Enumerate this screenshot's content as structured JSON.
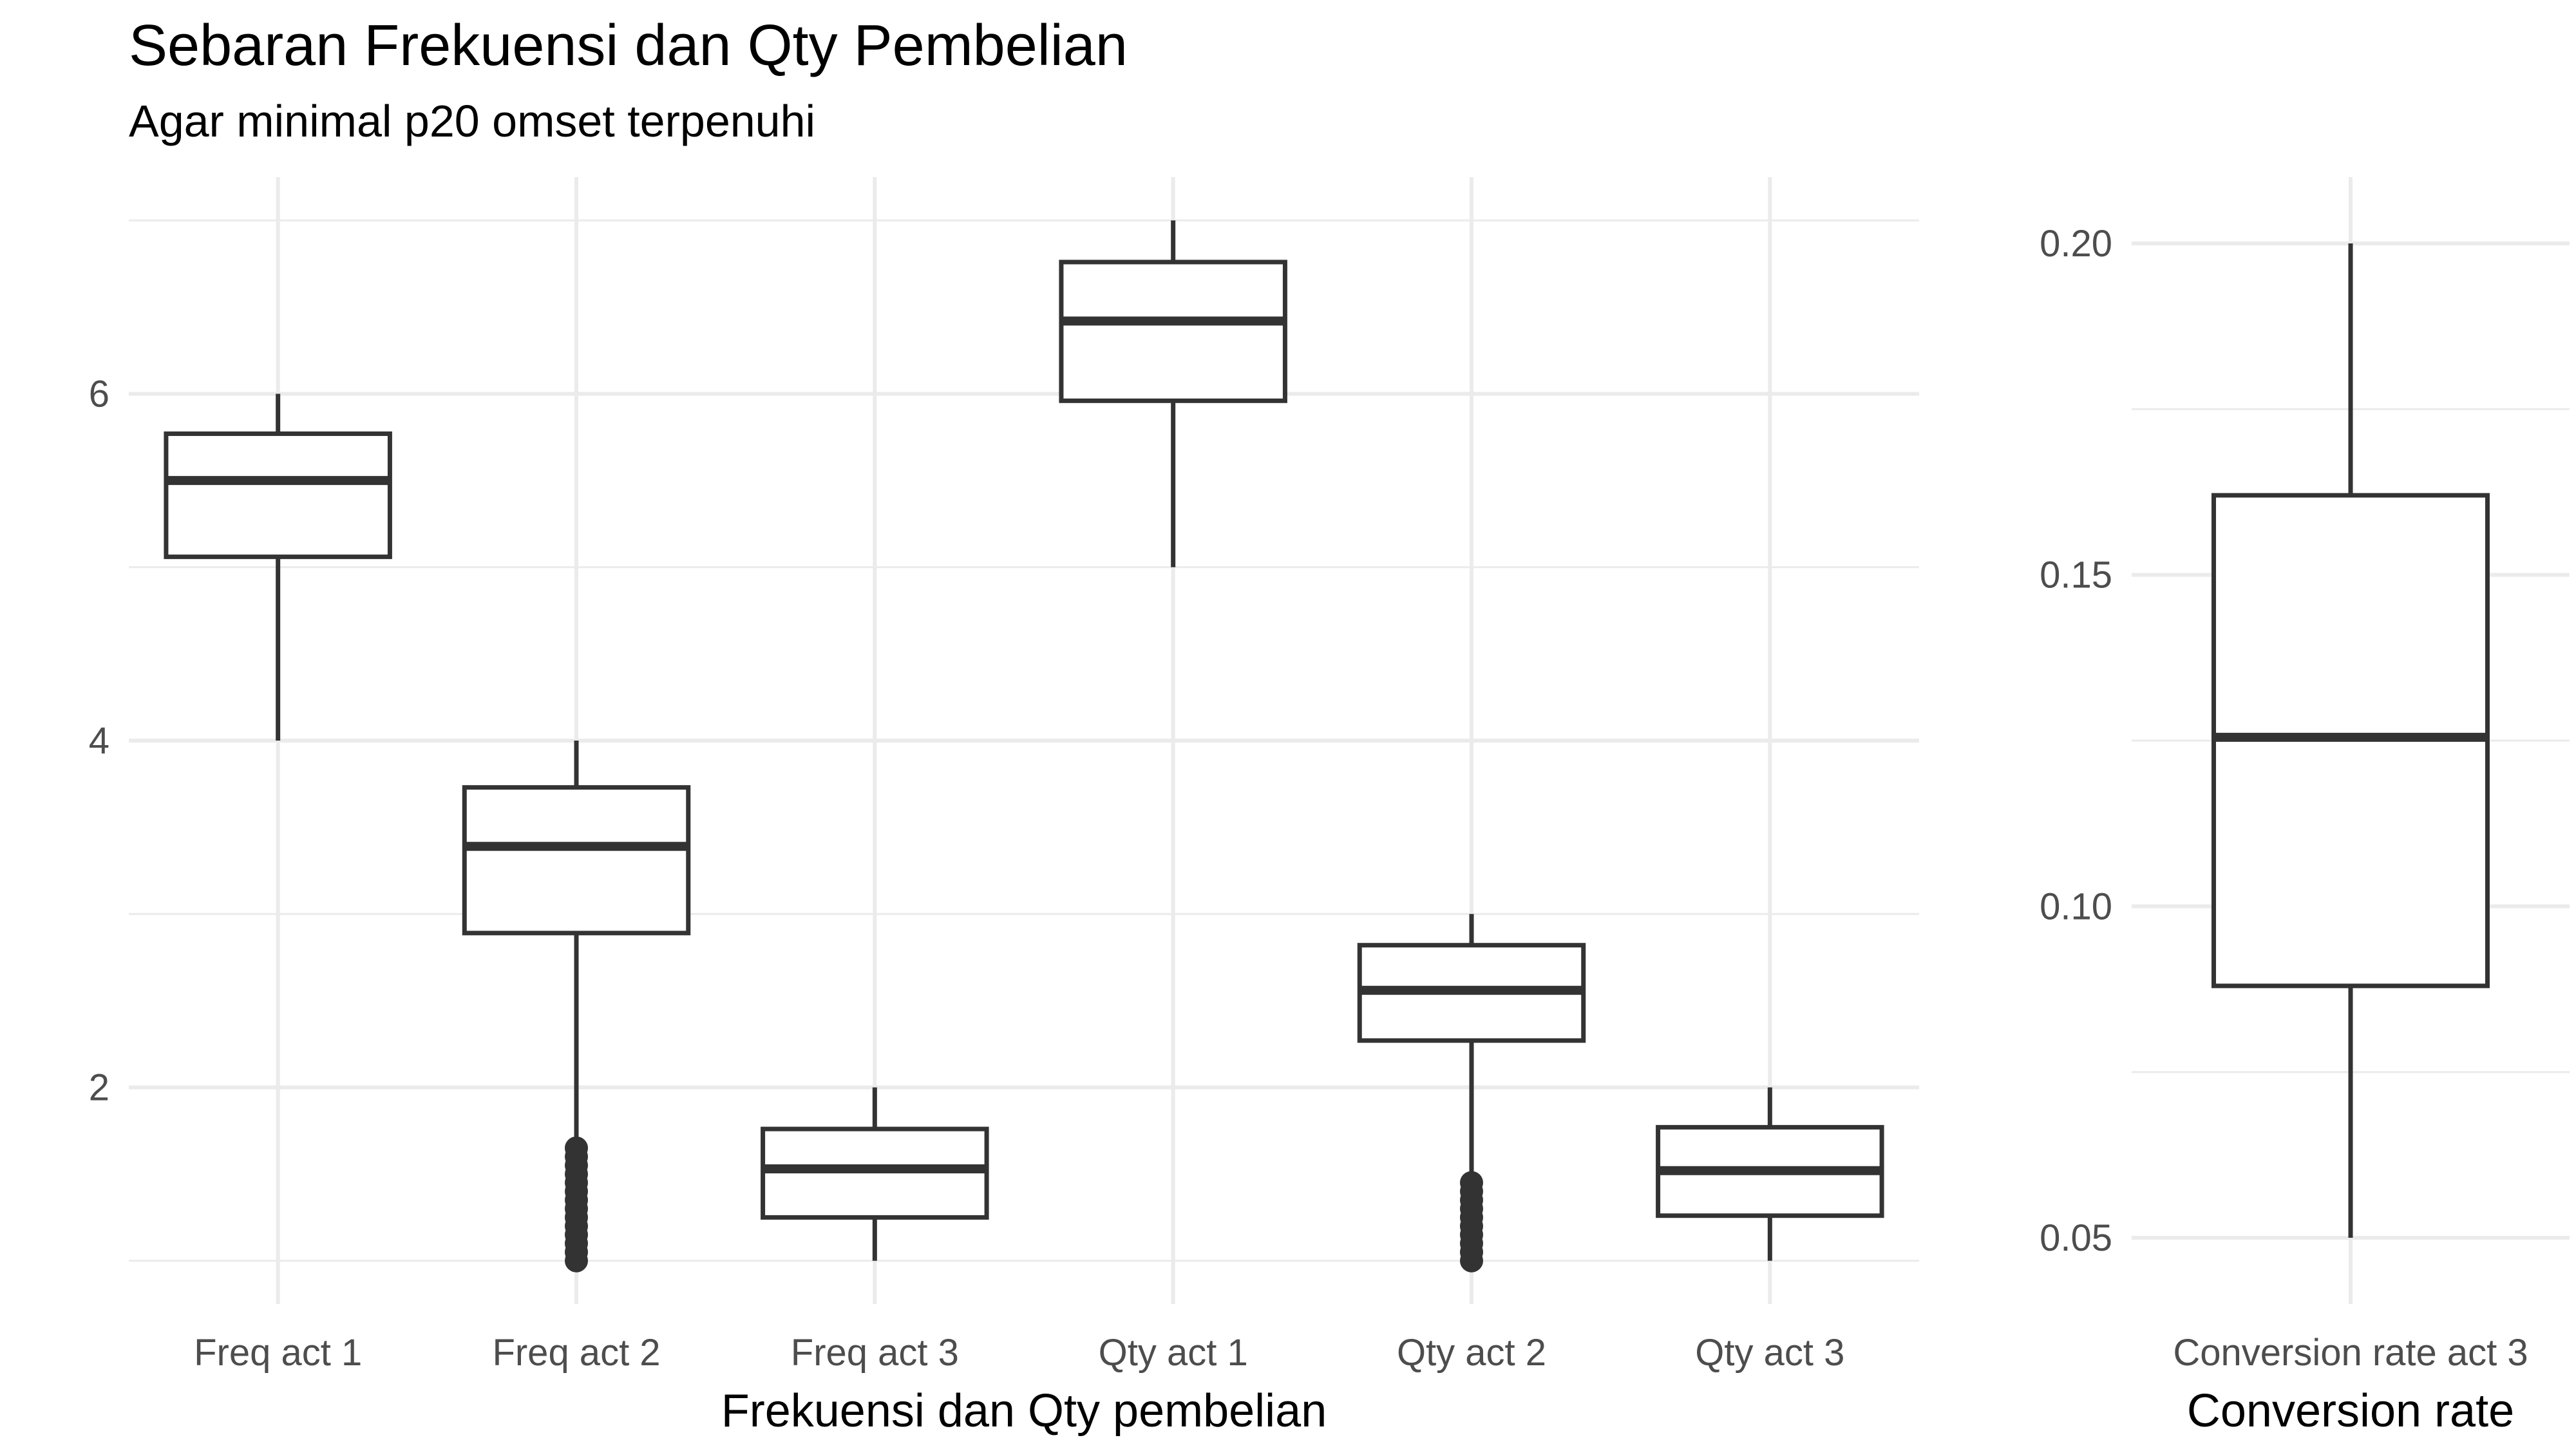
{
  "header": {
    "title": "Sebaran Frekuensi dan Qty Pembelian",
    "subtitle": "Agar minimal p20 omset terpenuhi"
  },
  "chart_data": [
    {
      "type": "boxplot",
      "xlabel": "Frekuensi dan Qty pembelian",
      "ylabel": "",
      "ylim": [
        0.75,
        7.25
      ],
      "yticks": [
        2,
        4,
        6
      ],
      "grid": true,
      "categories": [
        "Freq act 1",
        "Freq act 2",
        "Freq act 3",
        "Qty act 1",
        "Qty act 2",
        "Qty act 3"
      ],
      "boxes": [
        {
          "category": "Freq act 1",
          "min": 4,
          "q1": 5.06,
          "median": 5.5,
          "q3": 5.77,
          "max": 6,
          "outliers": []
        },
        {
          "category": "Freq act 2",
          "min": 2.89,
          "q1": 2.89,
          "median": 3.39,
          "q3": 3.73,
          "max": 4,
          "lower_whisker": 1.67,
          "outliers": [
            1.0,
            1.05,
            1.1,
            1.15,
            1.2,
            1.25,
            1.3,
            1.35,
            1.4,
            1.45,
            1.5,
            1.55,
            1.6,
            1.65
          ]
        },
        {
          "category": "Freq act 3",
          "min": 1,
          "q1": 1.25,
          "median": 1.53,
          "q3": 1.76,
          "max": 2,
          "outliers": []
        },
        {
          "category": "Qty act 1",
          "min": 5,
          "q1": 5.96,
          "median": 6.42,
          "q3": 6.76,
          "max": 7,
          "outliers": []
        },
        {
          "category": "Qty act 2",
          "min": 2.27,
          "q1": 2.27,
          "median": 2.56,
          "q3": 2.82,
          "max": 3,
          "lower_whisker": 1.5,
          "outliers": [
            1.0,
            1.05,
            1.1,
            1.15,
            1.2,
            1.25,
            1.3,
            1.35,
            1.4,
            1.45
          ]
        },
        {
          "category": "Qty act 3",
          "min": 1,
          "q1": 1.26,
          "median": 1.52,
          "q3": 1.77,
          "max": 2,
          "outliers": []
        }
      ]
    },
    {
      "type": "boxplot",
      "xlabel": "Conversion rate",
      "ylabel": "",
      "ylim": [
        0.04,
        0.21
      ],
      "yticks": [
        "0.05",
        "0.10",
        "0.15",
        "0.20"
      ],
      "grid": true,
      "categories": [
        "Conversion rate act 3"
      ],
      "boxes": [
        {
          "category": "Conversion rate act 3",
          "min": 0.05,
          "q1": 0.088,
          "median": 0.1255,
          "q3": 0.162,
          "max": 0.2,
          "outliers": []
        }
      ]
    }
  ]
}
